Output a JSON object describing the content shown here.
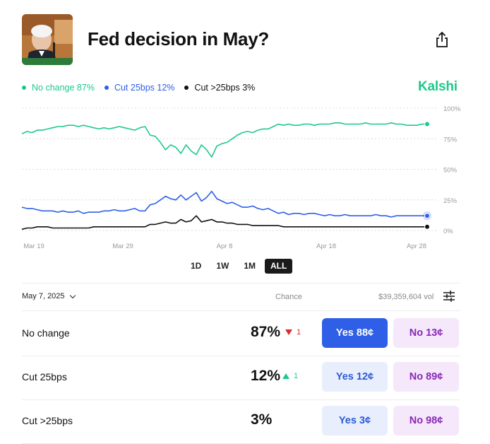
{
  "header": {
    "title": "Fed decision in May?",
    "thumbnail_icon": "speaker-photo",
    "share_icon": "share-icon"
  },
  "legend": [
    {
      "label": "No change 87%",
      "color": "#1ec98a"
    },
    {
      "label": "Cut 25bps 12%",
      "color": "#2e5fe6"
    },
    {
      "label": "Cut >25bps 3%",
      "color": "#111111"
    }
  ],
  "brand": "Kalshi",
  "chart_data": {
    "type": "line",
    "x_ticks": [
      "Mar 19",
      "Mar 29",
      "Apr 8",
      "Apr 18",
      "Apr 28"
    ],
    "y_ticks": [
      "100%",
      "75%",
      "50%",
      "25%",
      "0%"
    ],
    "ylim": [
      0,
      100
    ],
    "grid": true,
    "series": [
      {
        "name": "No change",
        "color": "#1ec98a",
        "values": [
          79,
          81,
          80,
          82,
          82,
          83,
          84,
          85,
          85,
          86,
          86,
          85,
          86,
          85,
          84,
          83,
          84,
          83,
          84,
          85,
          84,
          83,
          82,
          84,
          85,
          78,
          77,
          72,
          66,
          70,
          68,
          63,
          70,
          65,
          62,
          70,
          66,
          60,
          69,
          71,
          72,
          75,
          78,
          80,
          81,
          80,
          82,
          83,
          83,
          85,
          87,
          86,
          87,
          86,
          86,
          87,
          87,
          86,
          87,
          87,
          87,
          88,
          88,
          87,
          87,
          87,
          87,
          88,
          87,
          87,
          87,
          87,
          88,
          87,
          87,
          86,
          86,
          86,
          87,
          87
        ]
      },
      {
        "name": "Cut 25bps",
        "color": "#2e5fe6",
        "values": [
          19,
          18,
          18,
          17,
          16,
          16,
          16,
          15,
          16,
          15,
          15,
          16,
          14,
          15,
          15,
          15,
          16,
          16,
          17,
          16,
          16,
          17,
          18,
          16,
          16,
          21,
          22,
          25,
          28,
          26,
          25,
          29,
          25,
          28,
          31,
          24,
          27,
          32,
          26,
          24,
          22,
          23,
          21,
          19,
          19,
          20,
          18,
          17,
          18,
          16,
          14,
          15,
          13,
          14,
          14,
          13,
          14,
          14,
          13,
          12,
          13,
          12,
          12,
          13,
          12,
          12,
          12,
          12,
          12,
          13,
          12,
          12,
          11,
          12,
          12,
          12,
          12,
          12,
          12,
          12
        ]
      },
      {
        "name": "Cut >25bps",
        "color": "#111111",
        "values": [
          1,
          2,
          2,
          3,
          3,
          3,
          2,
          2,
          2,
          2,
          2,
          2,
          2,
          2,
          3,
          3,
          3,
          3,
          3,
          3,
          3,
          3,
          3,
          3,
          3,
          5,
          5,
          6,
          7,
          6,
          6,
          9,
          7,
          8,
          12,
          7,
          8,
          9,
          7,
          7,
          6,
          6,
          5,
          5,
          5,
          4,
          4,
          4,
          4,
          4,
          4,
          3,
          3,
          3,
          3,
          3,
          3,
          3,
          3,
          3,
          3,
          3,
          3,
          3,
          3,
          3,
          3,
          3,
          3,
          3,
          3,
          3,
          3,
          3,
          3,
          3,
          3,
          3,
          3,
          3
        ]
      }
    ]
  },
  "ranges": [
    "1D",
    "1W",
    "1M",
    "ALL"
  ],
  "active_range": "ALL",
  "markets_header": {
    "date": "May 7, 2025",
    "chance_label": "Chance",
    "volume": "$39,359,604 vol"
  },
  "markets": [
    {
      "name": "No change",
      "chance": "87%",
      "delta": "1",
      "delta_dir": "down",
      "yes": "Yes 88¢",
      "no": "No 13¢"
    },
    {
      "name": "Cut 25bps",
      "chance": "12%",
      "delta": "1",
      "delta_dir": "up",
      "yes": "Yes 12¢",
      "no": "No 89¢"
    },
    {
      "name": "Cut >25bps",
      "chance": "3%",
      "delta": "",
      "delta_dir": "",
      "yes": "Yes 3¢",
      "no": "No 98¢"
    }
  ]
}
